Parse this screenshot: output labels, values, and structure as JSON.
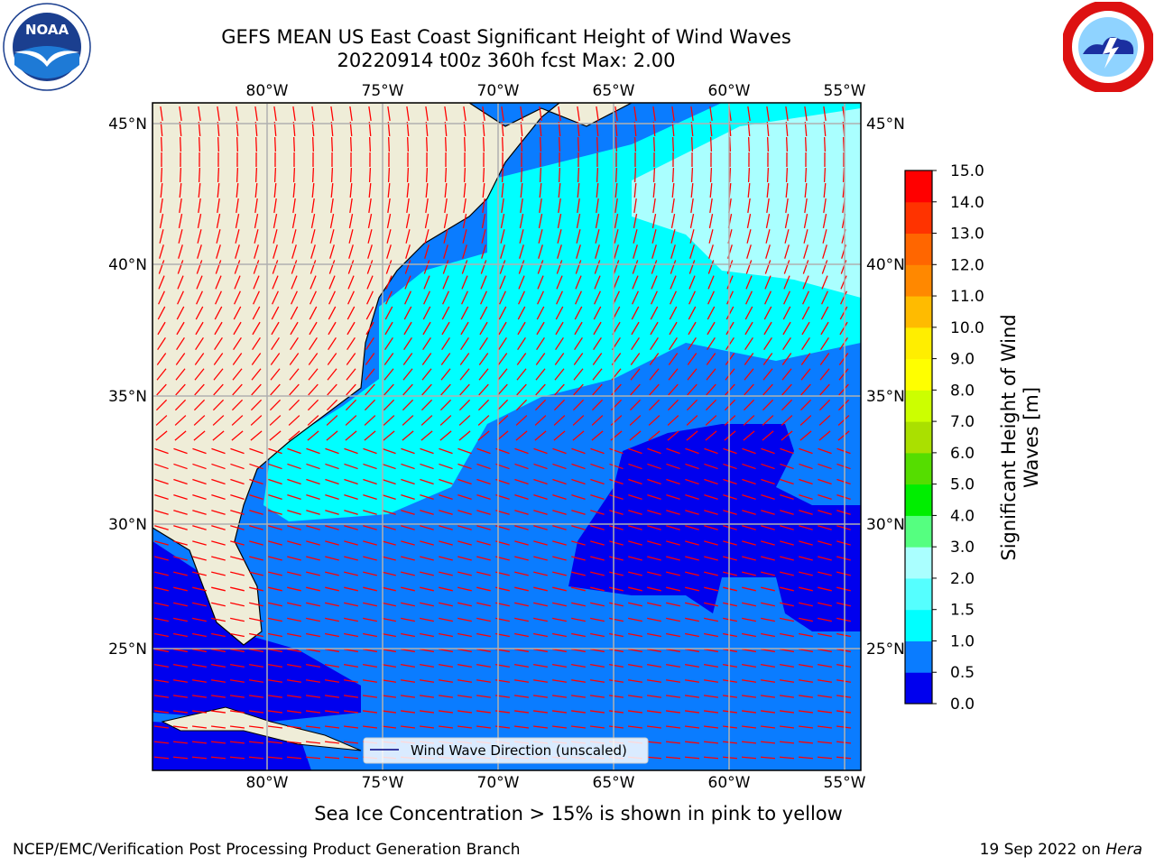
{
  "header": {
    "title_line1": "GEFS MEAN US East Coast Significant Height of Wind Waves",
    "title_line2": "20220914 t00z 360h fcst   Max: 2.00"
  },
  "logos": {
    "left_name": "noaa-logo",
    "right_name": "nws-logo"
  },
  "map": {
    "lon_labels": [
      "80°W",
      "75°W",
      "70°W",
      "65°W",
      "60°W",
      "55°W"
    ],
    "lat_labels": [
      "45°N",
      "40°N",
      "35°N",
      "30°N",
      "25°N"
    ],
    "legend_label": "Wind Wave Direction (unscaled)"
  },
  "colorbar": {
    "label": "Significant Height of Wind Waves [m]",
    "ticks": [
      "0.0",
      "0.5",
      "1.0",
      "1.5",
      "2.0",
      "3.0",
      "4.0",
      "5.0",
      "6.0",
      "7.0",
      "8.0",
      "9.0",
      "10.0",
      "11.0",
      "12.0",
      "13.0",
      "14.0",
      "15.0"
    ],
    "colors": [
      "#0000ee",
      "#0a7cff",
      "#00ffff",
      "#55ffff",
      "#aaffff",
      "#55ff80",
      "#00ee00",
      "#55dd00",
      "#aae000",
      "#ccff00",
      "#ffff00",
      "#ffee00",
      "#ffbb00",
      "#ff8800",
      "#ff6600",
      "#ff3300",
      "#ff0000"
    ]
  },
  "colors": {
    "land": "#efedd8",
    "deep_blue": "#0000ee",
    "mid_blue": "#0a7cff",
    "cyan": "#00ffff",
    "light_cyan": "#aaffff",
    "arrow": "#ff0000",
    "grid": "#b0b0b0"
  },
  "footer": {
    "note": "Sea Ice Concentration > 15% is shown in pink to yellow",
    "left": "NCEP/EMC/Verification Post Processing Product Generation Branch",
    "right_date": "19 Sep 2022 on ",
    "right_host": "Hera"
  }
}
